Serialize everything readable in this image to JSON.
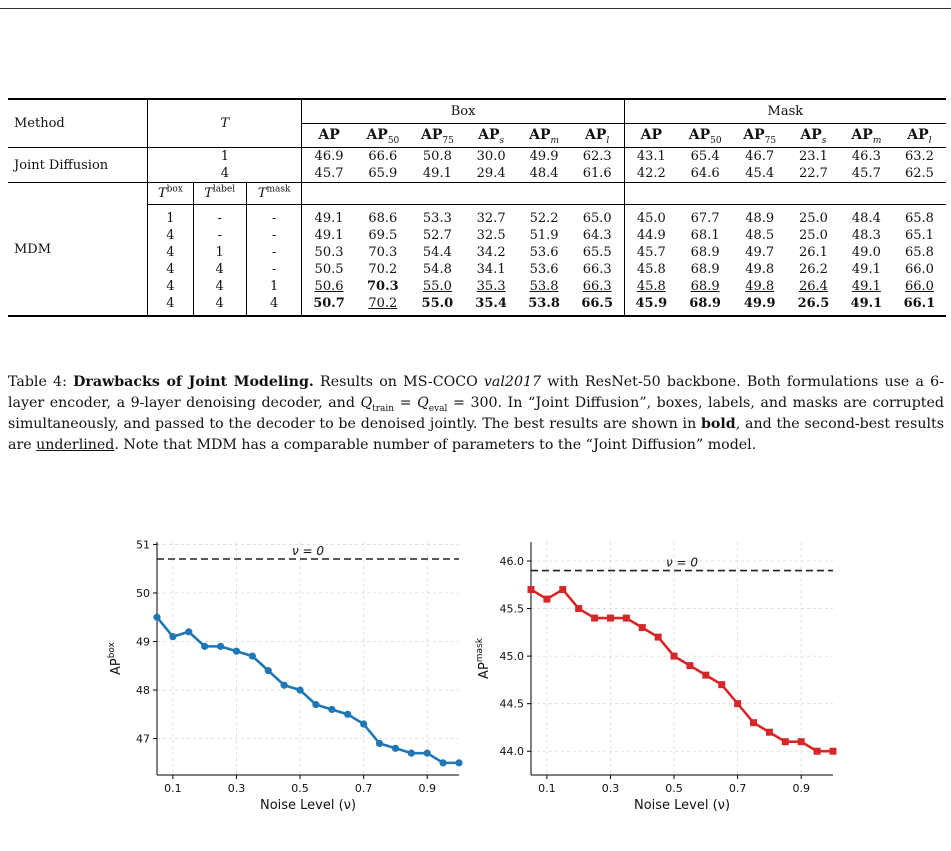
{
  "table": {
    "col_method": "Method",
    "col_T": "T",
    "group_box": "Box",
    "group_mask": "Mask",
    "metric_headers": [
      {
        "base": "AP",
        "sub": ""
      },
      {
        "base": "AP",
        "sub": "50"
      },
      {
        "base": "AP",
        "sub": "75"
      },
      {
        "base": "AP",
        "sub": "s"
      },
      {
        "base": "AP",
        "sub": "m"
      },
      {
        "base": "AP",
        "sub": "l"
      }
    ],
    "joint": {
      "label": "Joint Diffusion",
      "rows": [
        {
          "T": "1",
          "box": [
            "46.9",
            "66.6",
            "50.8",
            "30.0",
            "49.9",
            "62.3"
          ],
          "mask": [
            "43.1",
            "65.4",
            "46.7",
            "23.1",
            "46.3",
            "63.2"
          ]
        },
        {
          "T": "4",
          "box": [
            "45.7",
            "65.9",
            "49.1",
            "29.4",
            "48.4",
            "61.6"
          ],
          "mask": [
            "42.2",
            "64.6",
            "45.4",
            "22.7",
            "45.7",
            "62.5"
          ]
        }
      ]
    },
    "mdm": {
      "label": "MDM",
      "sub_headers": [
        "box",
        "label",
        "mask"
      ],
      "rows": [
        {
          "tb": "1",
          "tl": "-",
          "tm": "-",
          "box": [
            "49.1",
            "68.6",
            "53.3",
            "32.7",
            "52.2",
            "65.0"
          ],
          "mask": [
            "45.0",
            "67.7",
            "48.9",
            "25.0",
            "48.4",
            "65.8"
          ],
          "box_fmt": [
            "",
            "",
            "",
            "",
            "",
            ""
          ],
          "mask_fmt": [
            "",
            "",
            "",
            "",
            "",
            ""
          ]
        },
        {
          "tb": "4",
          "tl": "-",
          "tm": "-",
          "box": [
            "49.1",
            "69.5",
            "52.7",
            "32.5",
            "51.9",
            "64.3"
          ],
          "mask": [
            "44.9",
            "68.1",
            "48.5",
            "25.0",
            "48.3",
            "65.1"
          ],
          "box_fmt": [
            "",
            "",
            "",
            "",
            "",
            ""
          ],
          "mask_fmt": [
            "",
            "",
            "",
            "",
            "",
            ""
          ]
        },
        {
          "tb": "4",
          "tl": "1",
          "tm": "-",
          "box": [
            "50.3",
            "70.3",
            "54.4",
            "34.2",
            "53.6",
            "65.5"
          ],
          "mask": [
            "45.7",
            "68.9",
            "49.7",
            "26.1",
            "49.0",
            "65.8"
          ],
          "box_fmt": [
            "",
            "",
            "",
            "",
            "",
            ""
          ],
          "mask_fmt": [
            "",
            "",
            "",
            "",
            "",
            ""
          ]
        },
        {
          "tb": "4",
          "tl": "4",
          "tm": "-",
          "box": [
            "50.5",
            "70.2",
            "54.8",
            "34.1",
            "53.6",
            "66.3"
          ],
          "mask": [
            "45.8",
            "68.9",
            "49.8",
            "26.2",
            "49.1",
            "66.0"
          ],
          "box_fmt": [
            "",
            "",
            "",
            "",
            "",
            ""
          ],
          "mask_fmt": [
            "",
            "",
            "",
            "",
            "",
            ""
          ]
        },
        {
          "tb": "4",
          "tl": "4",
          "tm": "1",
          "box": [
            "50.6",
            "70.3",
            "55.0",
            "35.3",
            "53.8",
            "66.3"
          ],
          "mask": [
            "45.8",
            "68.9",
            "49.8",
            "26.4",
            "49.1",
            "66.0"
          ],
          "box_fmt": [
            "u",
            "b",
            "u",
            "u",
            "u",
            "u"
          ],
          "mask_fmt": [
            "u",
            "u",
            "u",
            "u",
            "u",
            "u"
          ]
        },
        {
          "tb": "4",
          "tl": "4",
          "tm": "4",
          "box": [
            "50.7",
            "70.2",
            "55.0",
            "35.4",
            "53.8",
            "66.5"
          ],
          "mask": [
            "45.9",
            "68.9",
            "49.9",
            "26.5",
            "49.1",
            "66.1"
          ],
          "box_fmt": [
            "b",
            "u",
            "b",
            "b",
            "b",
            "b"
          ],
          "mask_fmt": [
            "b",
            "b",
            "b",
            "b",
            "b",
            "b"
          ]
        }
      ]
    }
  },
  "caption": {
    "prefix": "Table 4: ",
    "title": "Drawbacks of Joint Modeling.",
    "t1": " Results on MS-COCO ",
    "split": "val2017",
    "t2": " with ResNet-50 backbone. Both formulations use a 6-layer encoder, a 9-layer denoising decoder, and ",
    "q_train_sub": "train",
    "q_eval_sub": "eval",
    "q_value": "300",
    "t3": ". In “Joint Diffusion”, boxes, labels, and masks are corrupted simultaneously, and passed to the decoder to be denoised jointly. The best results are shown in ",
    "bold_word": "bold",
    "t4": ", and the second-best results are ",
    "underline_word": "underlined",
    "t5": ". Note that MDM has a comparable number of parameters to the “Joint Diffusion” model."
  },
  "chart_data": [
    {
      "type": "line",
      "name": "box",
      "xlabel": "Noise Level (ν)",
      "ylabel": "AP",
      "ylabel_sup": "box",
      "color": "#1f77b4",
      "marker": "circle",
      "x": [
        0.05,
        0.1,
        0.15,
        0.2,
        0.25,
        0.3,
        0.35,
        0.4,
        0.45,
        0.5,
        0.55,
        0.6,
        0.65,
        0.7,
        0.75,
        0.8,
        0.85,
        0.9,
        0.95,
        1.0
      ],
      "values": [
        49.5,
        49.1,
        49.2,
        48.9,
        48.9,
        48.8,
        48.7,
        48.4,
        48.1,
        48.0,
        47.7,
        47.6,
        47.5,
        47.3,
        46.9,
        46.8,
        46.7,
        46.7,
        46.5,
        46.5
      ],
      "xlim": [
        0.05,
        1.0
      ],
      "ylim": [
        46.25,
        51.05
      ],
      "xticks": [
        "0.1",
        "0.3",
        "0.5",
        "0.7",
        "0.9"
      ],
      "yticks": [
        "47",
        "48",
        "49",
        "50",
        "51"
      ],
      "ref_line": {
        "value": 50.7,
        "label": "ν = 0"
      },
      "grid": true
    },
    {
      "type": "line",
      "name": "mask",
      "xlabel": "Noise Level (ν)",
      "ylabel": "AP",
      "ylabel_sup": "mask",
      "color": "#d62728",
      "marker": "square",
      "x": [
        0.05,
        0.1,
        0.15,
        0.2,
        0.25,
        0.3,
        0.35,
        0.4,
        0.45,
        0.5,
        0.55,
        0.6,
        0.65,
        0.7,
        0.75,
        0.8,
        0.85,
        0.9,
        0.95,
        1.0
      ],
      "values": [
        45.7,
        45.6,
        45.7,
        45.5,
        45.4,
        45.4,
        45.4,
        45.3,
        45.2,
        45.0,
        44.9,
        44.8,
        44.7,
        44.5,
        44.3,
        44.2,
        44.1,
        44.1,
        44.0,
        44.0
      ],
      "xlim": [
        0.05,
        1.0
      ],
      "ylim": [
        43.75,
        46.2
      ],
      "xticks": [
        "0.1",
        "0.3",
        "0.5",
        "0.7",
        "0.9"
      ],
      "yticks": [
        "44.0",
        "44.5",
        "45.0",
        "45.5",
        "46.0"
      ],
      "ref_line": {
        "value": 45.9,
        "label": "ν = 0"
      },
      "grid": true
    }
  ]
}
